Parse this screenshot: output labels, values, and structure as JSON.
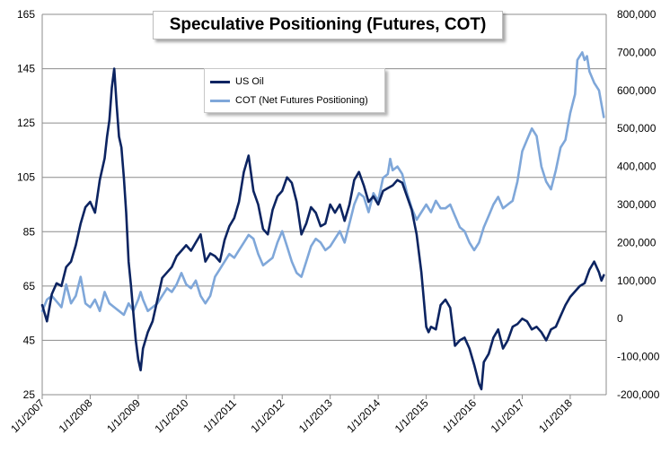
{
  "chart_data": {
    "type": "line",
    "title": "Speculative Positioning (Futures, COT)",
    "x_tick_labels": [
      "1/1/2007",
      "1/1/2008",
      "1/1/2009",
      "1/1/2010",
      "1/1/2011",
      "1/1/2012",
      "1/1/2013",
      "1/1/2014",
      "1/1/2015",
      "1/1/2016",
      "1/1/2017",
      "1/1/2018"
    ],
    "x_range": [
      2007.0,
      2018.75
    ],
    "y_left": {
      "range": [
        25,
        165
      ],
      "ticks": [
        25,
        45,
        65,
        85,
        105,
        125,
        145,
        165
      ]
    },
    "y_right": {
      "range": [
        -200000,
        800000
      ],
      "ticks": [
        "-200,000",
        "-100,000",
        "0",
        "100,000",
        "200,000",
        "300,000",
        "400,000",
        "500,000",
        "600,000",
        "700,000",
        "800,000"
      ]
    },
    "grid": "horizontal",
    "legend": "top-center",
    "series": [
      {
        "name": "US Oil",
        "axis": "left",
        "color": "#0c2461",
        "points": [
          [
            2007.0,
            58
          ],
          [
            2007.1,
            52
          ],
          [
            2007.2,
            62
          ],
          [
            2007.3,
            66
          ],
          [
            2007.4,
            65
          ],
          [
            2007.5,
            72
          ],
          [
            2007.6,
            74
          ],
          [
            2007.7,
            80
          ],
          [
            2007.8,
            88
          ],
          [
            2007.9,
            94
          ],
          [
            2008.0,
            96
          ],
          [
            2008.1,
            92
          ],
          [
            2008.2,
            104
          ],
          [
            2008.3,
            112
          ],
          [
            2008.35,
            120
          ],
          [
            2008.4,
            126
          ],
          [
            2008.45,
            138
          ],
          [
            2008.5,
            145
          ],
          [
            2008.55,
            132
          ],
          [
            2008.6,
            120
          ],
          [
            2008.65,
            116
          ],
          [
            2008.7,
            105
          ],
          [
            2008.75,
            92
          ],
          [
            2008.8,
            74
          ],
          [
            2008.85,
            65
          ],
          [
            2008.9,
            55
          ],
          [
            2008.95,
            45
          ],
          [
            2009.0,
            38
          ],
          [
            2009.05,
            34
          ],
          [
            2009.1,
            42
          ],
          [
            2009.2,
            48
          ],
          [
            2009.3,
            52
          ],
          [
            2009.4,
            60
          ],
          [
            2009.5,
            68
          ],
          [
            2009.6,
            70
          ],
          [
            2009.7,
            72
          ],
          [
            2009.8,
            76
          ],
          [
            2009.9,
            78
          ],
          [
            2010.0,
            80
          ],
          [
            2010.1,
            78
          ],
          [
            2010.2,
            81
          ],
          [
            2010.3,
            84
          ],
          [
            2010.4,
            74
          ],
          [
            2010.5,
            77
          ],
          [
            2010.6,
            76
          ],
          [
            2010.7,
            74
          ],
          [
            2010.8,
            82
          ],
          [
            2010.9,
            87
          ],
          [
            2011.0,
            90
          ],
          [
            2011.1,
            96
          ],
          [
            2011.2,
            107
          ],
          [
            2011.3,
            113
          ],
          [
            2011.4,
            100
          ],
          [
            2011.5,
            95
          ],
          [
            2011.6,
            86
          ],
          [
            2011.7,
            84
          ],
          [
            2011.8,
            93
          ],
          [
            2011.9,
            98
          ],
          [
            2012.0,
            100
          ],
          [
            2012.1,
            105
          ],
          [
            2012.2,
            103
          ],
          [
            2012.3,
            96
          ],
          [
            2012.4,
            84
          ],
          [
            2012.5,
            88
          ],
          [
            2012.6,
            94
          ],
          [
            2012.7,
            92
          ],
          [
            2012.8,
            87
          ],
          [
            2012.9,
            88
          ],
          [
            2013.0,
            95
          ],
          [
            2013.1,
            92
          ],
          [
            2013.2,
            95
          ],
          [
            2013.3,
            89
          ],
          [
            2013.4,
            95
          ],
          [
            2013.5,
            104
          ],
          [
            2013.6,
            107
          ],
          [
            2013.7,
            102
          ],
          [
            2013.8,
            96
          ],
          [
            2013.9,
            98
          ],
          [
            2014.0,
            95
          ],
          [
            2014.1,
            100
          ],
          [
            2014.2,
            101
          ],
          [
            2014.3,
            102
          ],
          [
            2014.4,
            104
          ],
          [
            2014.5,
            103
          ],
          [
            2014.6,
            98
          ],
          [
            2014.7,
            93
          ],
          [
            2014.8,
            84
          ],
          [
            2014.9,
            70
          ],
          [
            2015.0,
            50
          ],
          [
            2015.05,
            48
          ],
          [
            2015.1,
            50
          ],
          [
            2015.2,
            49
          ],
          [
            2015.3,
            58
          ],
          [
            2015.4,
            60
          ],
          [
            2015.5,
            57
          ],
          [
            2015.6,
            43
          ],
          [
            2015.7,
            45
          ],
          [
            2015.8,
            46
          ],
          [
            2015.9,
            42
          ],
          [
            2016.0,
            36
          ],
          [
            2016.1,
            29
          ],
          [
            2016.15,
            27
          ],
          [
            2016.2,
            37
          ],
          [
            2016.3,
            40
          ],
          [
            2016.4,
            46
          ],
          [
            2016.5,
            49
          ],
          [
            2016.6,
            42
          ],
          [
            2016.7,
            45
          ],
          [
            2016.8,
            50
          ],
          [
            2016.9,
            51
          ],
          [
            2017.0,
            53
          ],
          [
            2017.1,
            52
          ],
          [
            2017.2,
            49
          ],
          [
            2017.3,
            50
          ],
          [
            2017.4,
            48
          ],
          [
            2017.5,
            45
          ],
          [
            2017.6,
            49
          ],
          [
            2017.7,
            50
          ],
          [
            2017.8,
            54
          ],
          [
            2017.9,
            58
          ],
          [
            2018.0,
            61
          ],
          [
            2018.1,
            63
          ],
          [
            2018.2,
            65
          ],
          [
            2018.3,
            66
          ],
          [
            2018.4,
            71
          ],
          [
            2018.5,
            74
          ],
          [
            2018.6,
            70
          ],
          [
            2018.65,
            67
          ],
          [
            2018.7,
            69
          ]
        ]
      },
      {
        "name": "COT (Net Futures Positioning)",
        "axis": "right",
        "color": "#7fa7d9",
        "points": [
          [
            2007.0,
            20000
          ],
          [
            2007.1,
            50000
          ],
          [
            2007.2,
            60000
          ],
          [
            2007.3,
            45000
          ],
          [
            2007.4,
            30000
          ],
          [
            2007.5,
            90000
          ],
          [
            2007.6,
            40000
          ],
          [
            2007.7,
            60000
          ],
          [
            2007.8,
            110000
          ],
          [
            2007.9,
            40000
          ],
          [
            2008.0,
            30000
          ],
          [
            2008.1,
            50000
          ],
          [
            2008.2,
            20000
          ],
          [
            2008.3,
            70000
          ],
          [
            2008.4,
            40000
          ],
          [
            2008.5,
            30000
          ],
          [
            2008.6,
            20000
          ],
          [
            2008.7,
            10000
          ],
          [
            2008.8,
            40000
          ],
          [
            2008.9,
            20000
          ],
          [
            2009.0,
            50000
          ],
          [
            2009.05,
            70000
          ],
          [
            2009.1,
            50000
          ],
          [
            2009.2,
            20000
          ],
          [
            2009.3,
            30000
          ],
          [
            2009.4,
            40000
          ],
          [
            2009.5,
            60000
          ],
          [
            2009.6,
            80000
          ],
          [
            2009.7,
            70000
          ],
          [
            2009.8,
            90000
          ],
          [
            2009.9,
            120000
          ],
          [
            2010.0,
            90000
          ],
          [
            2010.1,
            80000
          ],
          [
            2010.2,
            100000
          ],
          [
            2010.3,
            60000
          ],
          [
            2010.4,
            40000
          ],
          [
            2010.5,
            60000
          ],
          [
            2010.6,
            110000
          ],
          [
            2010.7,
            130000
          ],
          [
            2010.8,
            150000
          ],
          [
            2010.9,
            170000
          ],
          [
            2011.0,
            160000
          ],
          [
            2011.1,
            180000
          ],
          [
            2011.2,
            200000
          ],
          [
            2011.3,
            220000
          ],
          [
            2011.4,
            210000
          ],
          [
            2011.5,
            170000
          ],
          [
            2011.6,
            140000
          ],
          [
            2011.7,
            150000
          ],
          [
            2011.8,
            160000
          ],
          [
            2011.9,
            200000
          ],
          [
            2012.0,
            230000
          ],
          [
            2012.1,
            190000
          ],
          [
            2012.2,
            150000
          ],
          [
            2012.3,
            120000
          ],
          [
            2012.4,
            110000
          ],
          [
            2012.5,
            150000
          ],
          [
            2012.6,
            190000
          ],
          [
            2012.7,
            210000
          ],
          [
            2012.8,
            200000
          ],
          [
            2012.9,
            180000
          ],
          [
            2013.0,
            190000
          ],
          [
            2013.1,
            210000
          ],
          [
            2013.2,
            230000
          ],
          [
            2013.3,
            200000
          ],
          [
            2013.4,
            250000
          ],
          [
            2013.5,
            300000
          ],
          [
            2013.6,
            330000
          ],
          [
            2013.7,
            320000
          ],
          [
            2013.8,
            280000
          ],
          [
            2013.9,
            330000
          ],
          [
            2014.0,
            310000
          ],
          [
            2014.1,
            370000
          ],
          [
            2014.2,
            380000
          ],
          [
            2014.25,
            420000
          ],
          [
            2014.3,
            390000
          ],
          [
            2014.4,
            400000
          ],
          [
            2014.5,
            380000
          ],
          [
            2014.6,
            330000
          ],
          [
            2014.7,
            290000
          ],
          [
            2014.8,
            260000
          ],
          [
            2014.9,
            280000
          ],
          [
            2015.0,
            300000
          ],
          [
            2015.1,
            280000
          ],
          [
            2015.2,
            310000
          ],
          [
            2015.3,
            290000
          ],
          [
            2015.4,
            290000
          ],
          [
            2015.5,
            300000
          ],
          [
            2015.6,
            270000
          ],
          [
            2015.7,
            240000
          ],
          [
            2015.8,
            230000
          ],
          [
            2015.9,
            200000
          ],
          [
            2016.0,
            180000
          ],
          [
            2016.1,
            200000
          ],
          [
            2016.2,
            240000
          ],
          [
            2016.3,
            270000
          ],
          [
            2016.4,
            300000
          ],
          [
            2016.5,
            320000
          ],
          [
            2016.6,
            290000
          ],
          [
            2016.7,
            300000
          ],
          [
            2016.8,
            310000
          ],
          [
            2016.9,
            360000
          ],
          [
            2017.0,
            440000
          ],
          [
            2017.1,
            470000
          ],
          [
            2017.2,
            500000
          ],
          [
            2017.3,
            480000
          ],
          [
            2017.4,
            400000
          ],
          [
            2017.5,
            360000
          ],
          [
            2017.6,
            340000
          ],
          [
            2017.7,
            390000
          ],
          [
            2017.8,
            450000
          ],
          [
            2017.9,
            470000
          ],
          [
            2018.0,
            540000
          ],
          [
            2018.1,
            590000
          ],
          [
            2018.15,
            680000
          ],
          [
            2018.2,
            690000
          ],
          [
            2018.25,
            700000
          ],
          [
            2018.3,
            680000
          ],
          [
            2018.35,
            690000
          ],
          [
            2018.4,
            650000
          ],
          [
            2018.5,
            620000
          ],
          [
            2018.6,
            600000
          ],
          [
            2018.7,
            530000
          ]
        ]
      }
    ]
  }
}
